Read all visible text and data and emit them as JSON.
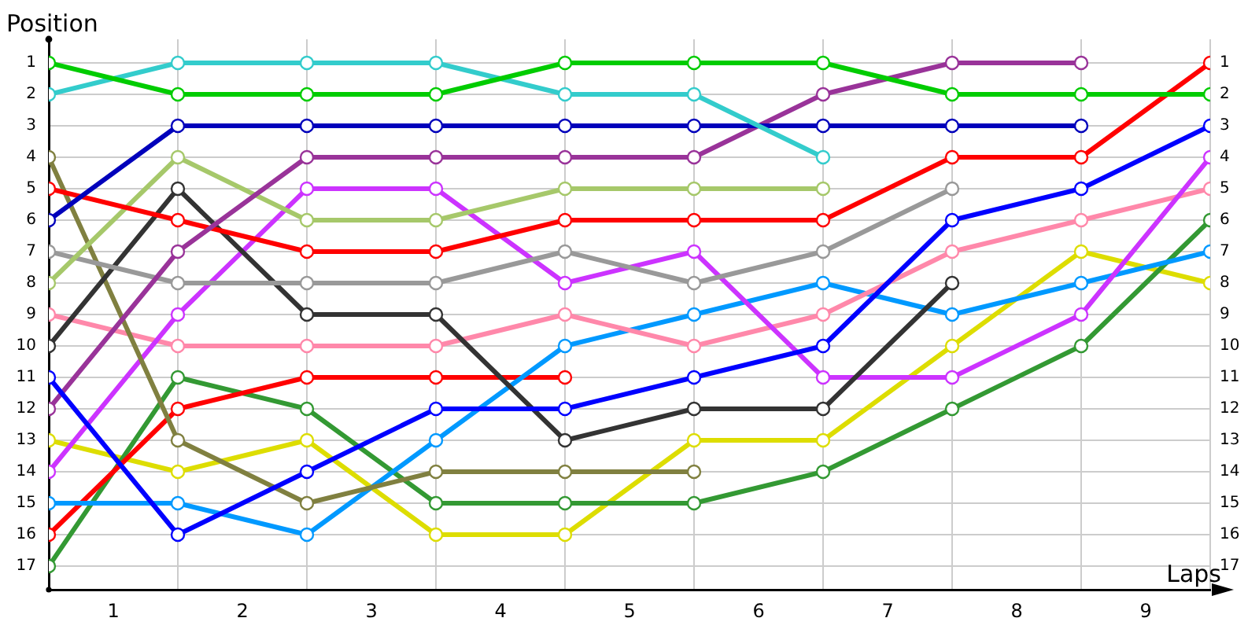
{
  "chart_data": {
    "type": "line",
    "xlabel": "Laps",
    "ylabel": "Position",
    "x": [
      0,
      1,
      2,
      3,
      4,
      5,
      6,
      7,
      8,
      9
    ],
    "xlim": [
      0,
      9
    ],
    "xticks": [
      {
        "value": 0,
        "label": null
      },
      {
        "value": 0.5,
        "label": "1"
      },
      {
        "value": 1,
        "label": null
      },
      {
        "value": 1.5,
        "label": "2"
      },
      {
        "value": 2,
        "label": null
      },
      {
        "value": 2.5,
        "label": "3"
      },
      {
        "value": 3,
        "label": null
      },
      {
        "value": 3.5,
        "label": "4"
      },
      {
        "value": 4,
        "label": null
      },
      {
        "value": 4.5,
        "label": "5"
      },
      {
        "value": 5,
        "label": null
      },
      {
        "value": 5.5,
        "label": "6"
      },
      {
        "value": 6,
        "label": null
      },
      {
        "value": 6.5,
        "label": "7"
      },
      {
        "value": 7,
        "label": null
      },
      {
        "value": 7.5,
        "label": "8"
      },
      {
        "value": 8,
        "label": null
      },
      {
        "value": 8.5,
        "label": "9"
      },
      {
        "value": 9,
        "label": null
      }
    ],
    "ylim": [
      17.75,
      0.25
    ],
    "yticks": [
      1,
      2,
      3,
      4,
      5,
      6,
      7,
      8,
      9,
      10,
      11,
      12,
      13,
      14,
      15,
      16,
      17
    ],
    "y2lim": [
      17.75,
      0.25
    ],
    "y2ticks": [
      1,
      2,
      3,
      4,
      5,
      6,
      7,
      8,
      9,
      10,
      11,
      12,
      13,
      14,
      15,
      16,
      17
    ],
    "grid": true,
    "legend": false,
    "marker": "circle",
    "line_style": "solid",
    "series": [
      {
        "color": "#00cc00",
        "values": [
          1,
          2,
          2,
          2,
          1,
          1,
          1,
          2,
          2,
          2
        ]
      },
      {
        "color": "#33cccc",
        "values": [
          2,
          1,
          1,
          1,
          2,
          2,
          4,
          null,
          null,
          null
        ]
      },
      {
        "color": "#0000bb",
        "values": [
          6,
          3,
          3,
          3,
          3,
          3,
          3,
          3,
          3,
          null
        ]
      },
      {
        "color": "#0000ff",
        "values": [
          11,
          16,
          14,
          12,
          12,
          11,
          10,
          6,
          5,
          3
        ]
      },
      {
        "color": "#993399",
        "values": [
          12,
          7,
          4,
          4,
          4,
          4,
          2,
          1,
          1,
          null
        ]
      },
      {
        "color": "#ff0000",
        "values": [
          5,
          6,
          7,
          7,
          6,
          6,
          6,
          4,
          4,
          1
        ]
      },
      {
        "color": "#a6c86a",
        "values": [
          8,
          4,
          6,
          6,
          5,
          5,
          5,
          null,
          null,
          null
        ]
      },
      {
        "color": "#999999",
        "values": [
          7,
          8,
          8,
          8,
          7,
          8,
          7,
          5,
          null,
          null
        ]
      },
      {
        "color": "#333333",
        "values": [
          10,
          5,
          9,
          9,
          13,
          12,
          12,
          8,
          null,
          null
        ]
      },
      {
        "color": "#808040",
        "values": [
          4,
          13,
          15,
          14,
          14,
          14,
          null,
          null,
          null,
          null
        ]
      },
      {
        "color": "#cc33ff",
        "values": [
          14,
          9,
          5,
          5,
          8,
          7,
          11,
          11,
          9,
          4
        ]
      },
      {
        "color": "#ff88aa",
        "values": [
          9,
          10,
          10,
          10,
          9,
          10,
          9,
          7,
          6,
          5
        ]
      },
      {
        "color": "#0099ff",
        "values": [
          15,
          15,
          16,
          13,
          10,
          9,
          8,
          9,
          8,
          7
        ]
      },
      {
        "color": "#ff0000",
        "values": [
          16,
          12,
          11,
          11,
          11,
          null,
          null,
          null,
          null,
          null
        ]
      },
      {
        "color": "#339933",
        "values": [
          17,
          11,
          12,
          15,
          15,
          15,
          14,
          12,
          10,
          6
        ]
      },
      {
        "color": "#dddd00",
        "values": [
          13,
          14,
          13,
          16,
          16,
          13,
          13,
          10,
          7,
          8
        ]
      }
    ]
  }
}
